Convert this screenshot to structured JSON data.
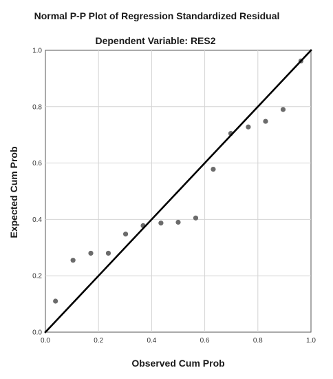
{
  "chart_data": {
    "type": "scatter",
    "title": "Normal P-P Plot of Regression Standardized Residual",
    "subtitle": "Dependent Variable: RES2",
    "xlabel": "Observed Cum Prob",
    "ylabel": "Expected Cum Prob",
    "xlim": [
      0.0,
      1.0
    ],
    "ylim": [
      0.0,
      1.0
    ],
    "x_ticks": [
      "0.0",
      "0.2",
      "0.4",
      "0.6",
      "0.8",
      "1.0"
    ],
    "y_ticks": [
      "0.0",
      "0.2",
      "0.4",
      "0.6",
      "0.8",
      "1.0"
    ],
    "grid": true,
    "reference_line": {
      "from": [
        0.0,
        0.0
      ],
      "to": [
        1.0,
        1.0
      ]
    },
    "points": [
      {
        "x": 0.038,
        "y": 0.11
      },
      {
        "x": 0.104,
        "y": 0.255
      },
      {
        "x": 0.171,
        "y": 0.28
      },
      {
        "x": 0.237,
        "y": 0.28
      },
      {
        "x": 0.302,
        "y": 0.348
      },
      {
        "x": 0.368,
        "y": 0.378
      },
      {
        "x": 0.435,
        "y": 0.387
      },
      {
        "x": 0.5,
        "y": 0.39
      },
      {
        "x": 0.566,
        "y": 0.405
      },
      {
        "x": 0.632,
        "y": 0.578
      },
      {
        "x": 0.698,
        "y": 0.705
      },
      {
        "x": 0.764,
        "y": 0.728
      },
      {
        "x": 0.829,
        "y": 0.748
      },
      {
        "x": 0.895,
        "y": 0.79
      },
      {
        "x": 0.962,
        "y": 0.962
      }
    ],
    "colors": {
      "point": "#6b6b6b",
      "line": "#000000",
      "grid": "#d4d4d4",
      "axis": "#555555"
    }
  }
}
